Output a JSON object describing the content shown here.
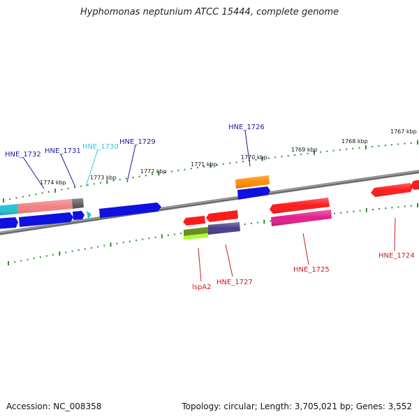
{
  "title": "Hyphomonas neptunium ATCC 15444, complete genome",
  "footer": {
    "accession": "Accession: NC_008358",
    "topology": "Topology: circular; Length: 3,705,021 bp; Genes: 3,552"
  },
  "colors": {
    "backbone": "#7a7a7a",
    "tick": "#2e8b2e",
    "label_forward": "#1a1aa0",
    "label_forward_highlight": "#3cc0e0",
    "label_reverse": "#cc1a1a"
  },
  "tick_labels": [
    "1774 kbp",
    "1773 kbp",
    "1772 kbp",
    "1771 kbp",
    "1770 kbp",
    "1769 kbp",
    "1768 kbp",
    "1767 kbp"
  ],
  "genes_forward": [
    {
      "label": "HNE_1732",
      "color": "#1a1aa0"
    },
    {
      "label": "HNE_1731",
      "color": "#1a1aa0"
    },
    {
      "label": "HNE_1730",
      "color": "#3cc0e0"
    },
    {
      "label": "HNE_1729",
      "color": "#1a1aa0"
    },
    {
      "label": "HNE_1726",
      "color": "#1a1aa0"
    }
  ],
  "genes_reverse": [
    {
      "label": "lspA2",
      "color": "#cc1a1a"
    },
    {
      "label": "HNE_1727",
      "color": "#cc1a1a"
    },
    {
      "label": "HNE_1725",
      "color": "#cc1a1a"
    },
    {
      "label": "HNE_1724",
      "color": "#cc1a1a"
    }
  ],
  "features": [
    {
      "name": "feature-cyan",
      "color": "#22c4d4"
    },
    {
      "name": "feature-salmon",
      "color": "#f08080"
    },
    {
      "name": "feature-gray",
      "color": "#555555"
    },
    {
      "name": "feature-blue-a",
      "color": "#1010e0"
    },
    {
      "name": "feature-blue-b",
      "color": "#1010e0"
    },
    {
      "name": "feature-blue-c",
      "color": "#1010e0"
    },
    {
      "name": "feature-cyan-small",
      "color": "#22c4d4"
    },
    {
      "name": "feature-blue-1729",
      "color": "#1010e0"
    },
    {
      "name": "feature-orange-1726",
      "color": "#ff8c00"
    },
    {
      "name": "feature-blue-1726b",
      "color": "#1010e0"
    },
    {
      "name": "feature-red-small",
      "color": "#ff1a1a"
    },
    {
      "name": "feature-red-1727",
      "color": "#ff1a1a"
    },
    {
      "name": "feature-olive",
      "color": "#6b8e23"
    },
    {
      "name": "feature-lime",
      "color": "#adff2f"
    },
    {
      "name": "feature-slate",
      "color": "#483d8b"
    },
    {
      "name": "feature-red-1725",
      "color": "#ff1a1a"
    },
    {
      "name": "feature-magenta",
      "color": "#e0208c"
    },
    {
      "name": "feature-red-1724",
      "color": "#ff1a1a"
    },
    {
      "name": "feature-red-edge",
      "color": "#ff1a1a"
    }
  ]
}
